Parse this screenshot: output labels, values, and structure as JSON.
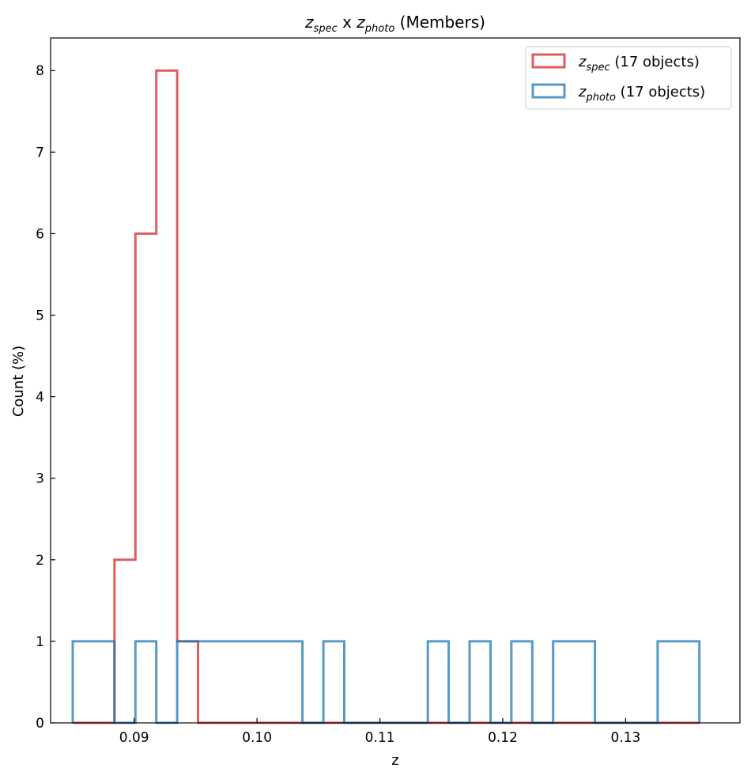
{
  "chart_data": {
    "type": "histogram-step",
    "title": {
      "var1": "z",
      "sub1": "spec",
      "mid": " x ",
      "var2": "z",
      "sub2": "photo",
      "suffix": " (Members)"
    },
    "xlabel": "z",
    "ylabel": "Count (%)",
    "xlim": [
      0.0832,
      0.1393
    ],
    "ylim": [
      0,
      8.4
    ],
    "xticks": [
      {
        "value": 0.09,
        "label": "0.09"
      },
      {
        "value": 0.1,
        "label": "0.10"
      },
      {
        "value": 0.11,
        "label": "0.11"
      },
      {
        "value": 0.12,
        "label": "0.12"
      },
      {
        "value": 0.13,
        "label": "0.13"
      }
    ],
    "yticks": [
      {
        "value": 0,
        "label": "0"
      },
      {
        "value": 1,
        "label": "1"
      },
      {
        "value": 2,
        "label": "2"
      },
      {
        "value": 3,
        "label": "3"
      },
      {
        "value": 4,
        "label": "4"
      },
      {
        "value": 5,
        "label": "5"
      },
      {
        "value": 6,
        "label": "6"
      },
      {
        "value": 7,
        "label": "7"
      },
      {
        "value": 8,
        "label": "8"
      }
    ],
    "bin_edges": [
      0.085,
      0.0867,
      0.0884,
      0.0901,
      0.0918,
      0.0935,
      0.0952,
      0.0969,
      0.0986,
      0.1003,
      0.102,
      0.1037,
      0.1054,
      0.1071,
      0.1088,
      0.1105,
      0.1122,
      0.1139,
      0.1156,
      0.1173,
      0.119,
      0.1207,
      0.1224,
      0.1241,
      0.1258,
      0.1275,
      0.1292,
      0.1309,
      0.1326,
      0.1343,
      0.136
    ],
    "legend_position": "top-right",
    "series": [
      {
        "name": "spec",
        "legend": {
          "var": "z",
          "sub": "spec",
          "suffix": " (17 objects)"
        },
        "color": "#d62728",
        "counts": [
          0,
          0,
          2,
          6,
          8,
          1,
          0,
          0,
          0,
          0,
          0,
          0,
          0,
          0,
          0,
          0,
          0,
          0,
          0,
          0,
          0,
          0,
          0,
          0,
          0,
          0,
          0,
          0,
          0,
          0
        ]
      },
      {
        "name": "photo",
        "legend": {
          "var": "z",
          "sub": "photo",
          "suffix": " (17 objects)"
        },
        "color": "#1f77b4",
        "counts": [
          1,
          1,
          0,
          1,
          0,
          1,
          1,
          1,
          1,
          1,
          1,
          0,
          1,
          0,
          0,
          0,
          0,
          1,
          0,
          1,
          0,
          1,
          0,
          1,
          1,
          0,
          0,
          0,
          1,
          1
        ]
      }
    ]
  }
}
